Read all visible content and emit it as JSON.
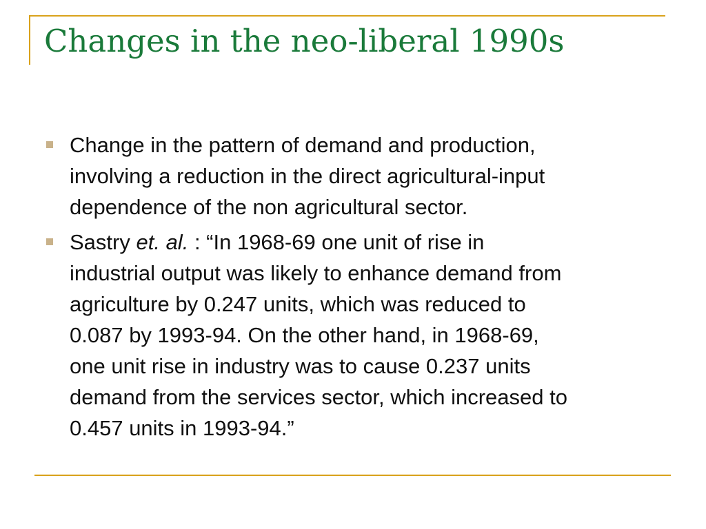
{
  "slide": {
    "title": "Changes in the neo-liberal 1990s",
    "accent_color": "#d9a21b",
    "title_color": "#1a7a3a",
    "bullet_color": "#c9b28a",
    "bullets": [
      {
        "lines": [
          "Change in the pattern of demand and production,",
          "involving a reduction in the direct agricultural-input",
          "dependence of the non agricultural sector."
        ]
      },
      {
        "author": "Sastry",
        "etal": "et. al.",
        "first_line_rest": ": “In 1968-69 one unit of rise in",
        "lines": [
          "industrial output was likely to enhance demand from",
          "agriculture by 0.247 units, which was reduced to",
          "0.087 by 1993-94. On the other hand, in 1968-69,",
          "one unit rise in industry was to cause 0.237 units",
          "demand from the services sector, which increased to",
          "0.457 units in 1993-94.”"
        ]
      }
    ]
  }
}
